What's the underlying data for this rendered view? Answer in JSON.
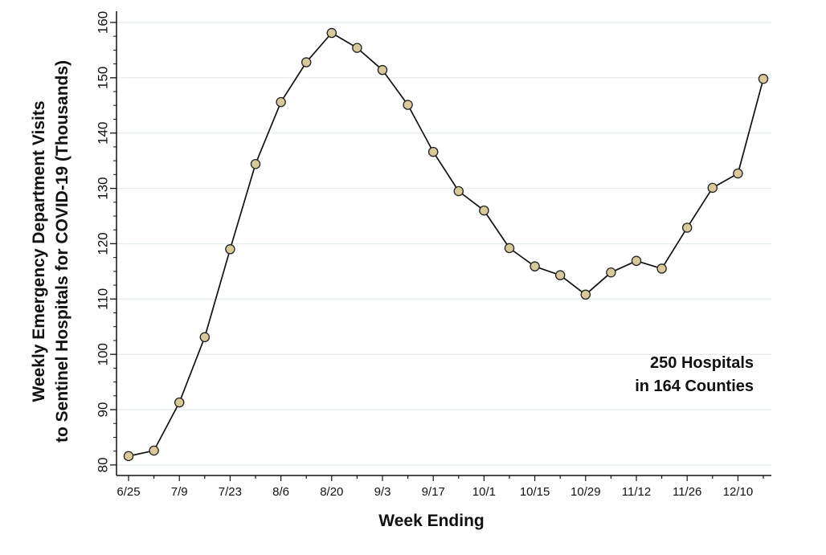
{
  "chart_data": {
    "type": "line",
    "title": "",
    "xlabel": "Week Ending",
    "ylabel_lines": [
      "Weekly Emergency Department Visits",
      "to Sentinel Hospitals for COVID-19 (Thousands)"
    ],
    "ylim": [
      79,
      161
    ],
    "yticks": [
      80,
      90,
      100,
      110,
      120,
      130,
      140,
      150,
      160
    ],
    "y_minor_ticks": [
      82.5,
      85,
      87.5,
      92.5,
      95,
      97.5,
      102.5,
      105,
      107.5,
      112.5,
      115,
      117.5,
      122.5,
      125,
      127.5,
      132.5,
      135,
      137.5,
      142.5,
      145,
      147.5,
      152.5,
      155,
      157.5
    ],
    "x": [
      "6/25",
      "7/2",
      "7/9",
      "7/16",
      "7/23",
      "7/30",
      "8/6",
      "8/13",
      "8/20",
      "8/27",
      "9/3",
      "9/10",
      "9/17",
      "9/24",
      "10/1",
      "10/8",
      "10/15",
      "10/22",
      "10/29",
      "11/5",
      "11/12",
      "11/19",
      "11/26",
      "12/3",
      "12/10",
      "12/17"
    ],
    "xtick_labels": [
      "6/25",
      "7/9",
      "7/23",
      "8/6",
      "8/20",
      "9/3",
      "9/17",
      "10/1",
      "10/15",
      "10/29",
      "11/12",
      "11/26",
      "12/10"
    ],
    "values": [
      81.6,
      82.6,
      91.3,
      103.1,
      119.0,
      134.4,
      145.6,
      152.8,
      158.1,
      155.4,
      151.4,
      145.1,
      136.6,
      129.5,
      126.0,
      119.2,
      115.9,
      114.3,
      110.8,
      114.8,
      116.9,
      115.5,
      122.9,
      130.1,
      132.7,
      149.8
    ],
    "grid": true,
    "marker_fill": "#d9c99a",
    "marker_stroke": "#222222",
    "line_color": "#111111",
    "grid_color": "#e4ecef",
    "annotation": [
      "250 Hospitals",
      "in 164 Counties"
    ]
  }
}
